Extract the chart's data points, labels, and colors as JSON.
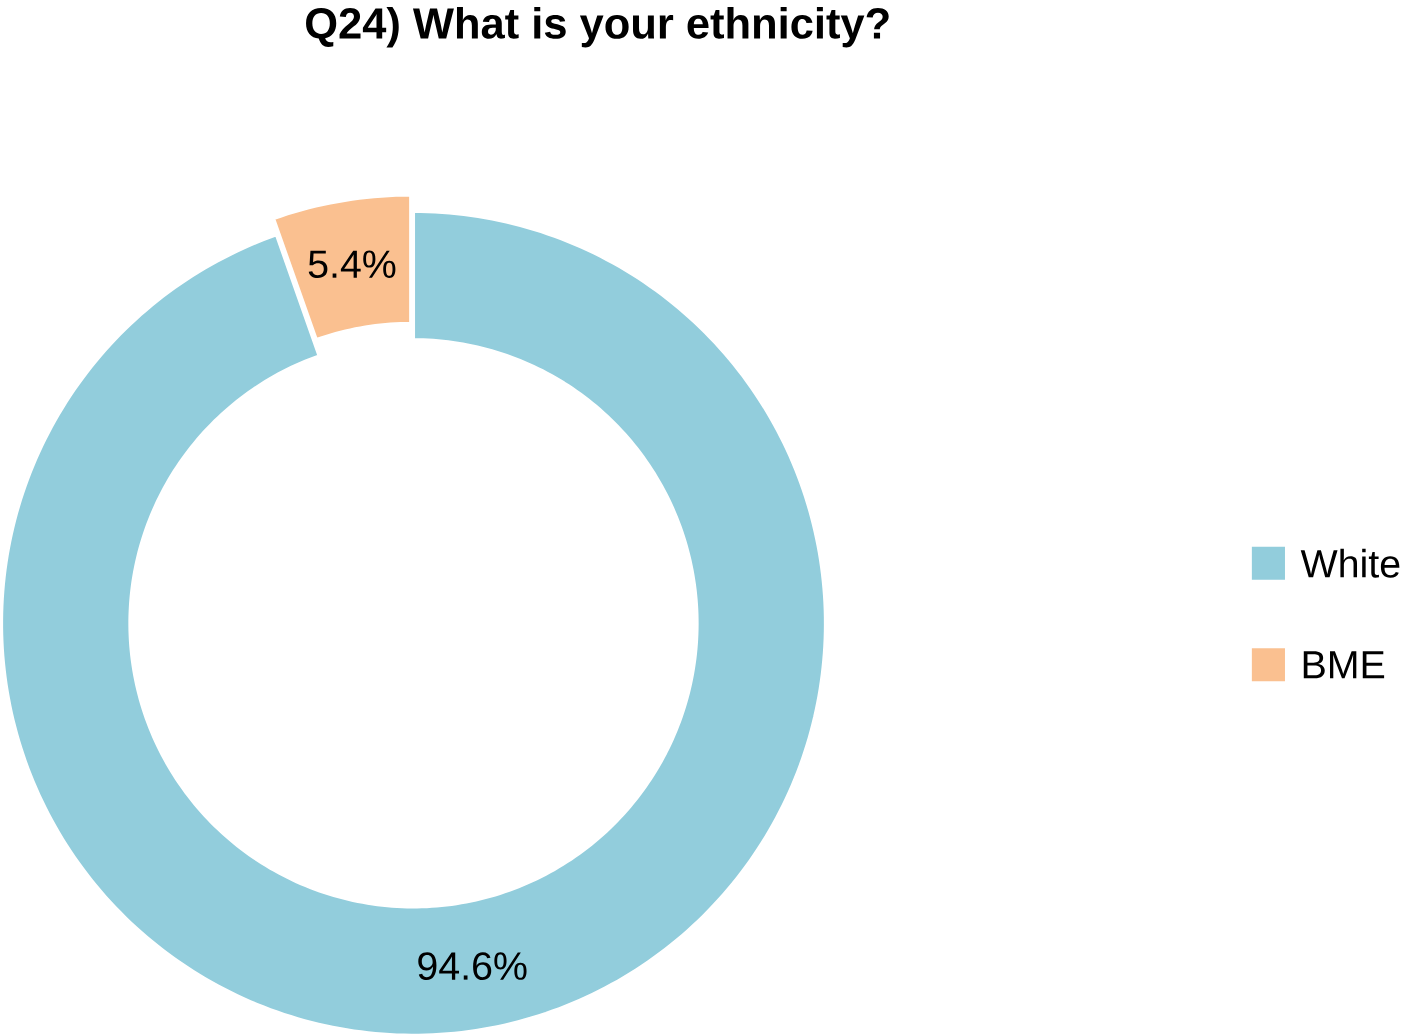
{
  "chart_data": {
    "type": "donut",
    "title": "Q24) What is your ethnicity?",
    "categories": [
      "White",
      "BME"
    ],
    "values": [
      94.6,
      5.4
    ],
    "colors": [
      "#92cddc",
      "#fac090"
    ],
    "value_labels": [
      "94.6%",
      "5.4%"
    ],
    "legend": "right"
  }
}
